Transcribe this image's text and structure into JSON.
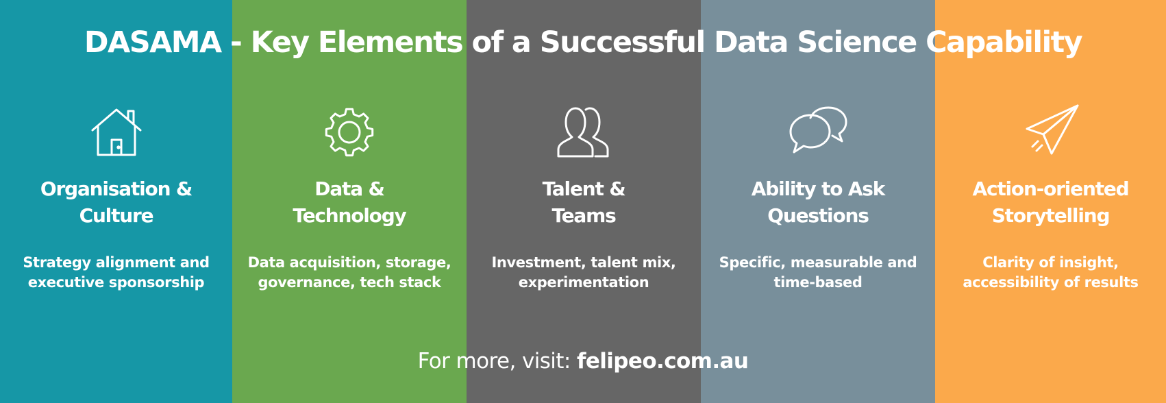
{
  "title": "DASAMA - Key Elements of a Successful Data Science Capability",
  "columns": [
    {
      "color": "#1697a6",
      "icon": "house-icon",
      "title_lines": [
        "Organisation &",
        "Culture"
      ],
      "desc_lines": [
        "Strategy alignment and",
        "executive sponsorship"
      ]
    },
    {
      "color": "#6aa84f",
      "icon": "gear-icon",
      "title_lines": [
        "Data &",
        "Technology"
      ],
      "desc_lines": [
        "Data acquisition, storage,",
        "governance, tech stack"
      ]
    },
    {
      "color": "#666666",
      "icon": "people-icon",
      "title_lines": [
        "Talent &",
        "Teams"
      ],
      "desc_lines": [
        "Investment, talent mix,",
        "experimentation"
      ]
    },
    {
      "color": "#788f9b",
      "icon": "speech-bubbles-icon",
      "title_lines": [
        "Ability to Ask",
        "Questions"
      ],
      "desc_lines": [
        "Specific, measurable and",
        "time-based"
      ]
    },
    {
      "color": "#fba94b",
      "icon": "paper-plane-icon",
      "title_lines": [
        "Action-oriented",
        "Storytelling"
      ],
      "desc_lines": [
        "Clarity of insight,",
        "accessibility of results"
      ]
    }
  ],
  "footer": {
    "prefix": "For more, visit: ",
    "link": "felipeo.com.au"
  }
}
